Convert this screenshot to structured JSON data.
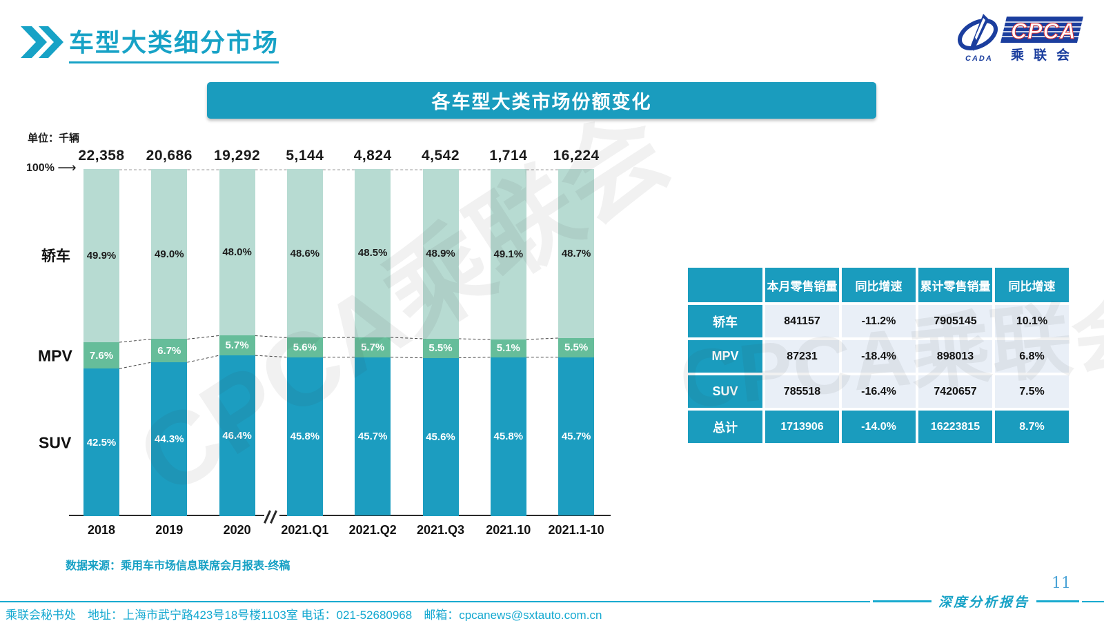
{
  "header": {
    "title": "车型大类细分市场"
  },
  "logo": {
    "cpca": "CPCA",
    "subtitle": "乘联会",
    "cada": "CADA"
  },
  "banner": {
    "title": "各车型大类市场份额变化"
  },
  "chart": {
    "unit_label": "单位：千辆",
    "axis_100_label": "100%",
    "axis_arrow": "⟶"
  },
  "chart_data": {
    "type": "bar",
    "stacked": true,
    "title": "各车型大类市场份额变化",
    "unit": "千辆",
    "ylim": [
      0,
      100
    ],
    "grid": false,
    "categories": [
      "2018",
      "2019",
      "2020",
      "2021.Q1",
      "2021.Q2",
      "2021.Q3",
      "2021.10",
      "2021.1-10"
    ],
    "totals": [
      "22,358",
      "20,686",
      "19,292",
      "5,144",
      "4,824",
      "4,542",
      "1,714",
      "16,224"
    ],
    "series": [
      {
        "name": "轿车",
        "color": "#b7dbd2",
        "label_color": "#1c1c1c",
        "values": [
          49.9,
          49.0,
          48.0,
          48.6,
          48.5,
          48.9,
          49.1,
          48.7
        ]
      },
      {
        "name": "MPV",
        "color": "#66bd9a",
        "label_color": "#ffffff",
        "values": [
          7.6,
          6.7,
          5.7,
          5.6,
          5.7,
          5.5,
          5.1,
          5.5
        ]
      },
      {
        "name": "SUV",
        "color": "#1c9dc0",
        "label_color": "#ffffff",
        "values": [
          42.5,
          44.3,
          46.4,
          45.8,
          45.7,
          45.6,
          45.8,
          45.7
        ]
      }
    ],
    "legend_position": "left"
  },
  "table": {
    "headers": [
      "",
      "本月零售销量",
      "同比增速",
      "累计零售销量",
      "同比增速"
    ],
    "rows": [
      {
        "label": "轿车",
        "values": [
          "841157",
          "-11.2%",
          "7905145",
          "10.1%"
        ],
        "total": false
      },
      {
        "label": "MPV",
        "values": [
          "87231",
          "-18.4%",
          "898013",
          "6.8%"
        ],
        "total": false
      },
      {
        "label": "SUV",
        "values": [
          "785518",
          "-16.4%",
          "7420657",
          "7.5%"
        ],
        "total": false
      },
      {
        "label": "总计",
        "values": [
          "1713906",
          "-14.0%",
          "16223815",
          "8.7%"
        ],
        "total": true
      }
    ]
  },
  "watermark": {
    "text": "CPCA乘联会"
  },
  "source": {
    "text": "数据来源：乘用车市场信息联席会月报表-终稿"
  },
  "footer": {
    "contact": "乘联会秘书处　地址：上海市武宁路423号18号楼1103室  电话：021-52680968　邮箱：cpcanews@sxtauto.com.cn",
    "report_label": "深度分析报告",
    "page_number": "11"
  },
  "colors": {
    "accent": "#17a2c6",
    "banner": "#1a9cbe",
    "table_row": "#e9eff7"
  }
}
